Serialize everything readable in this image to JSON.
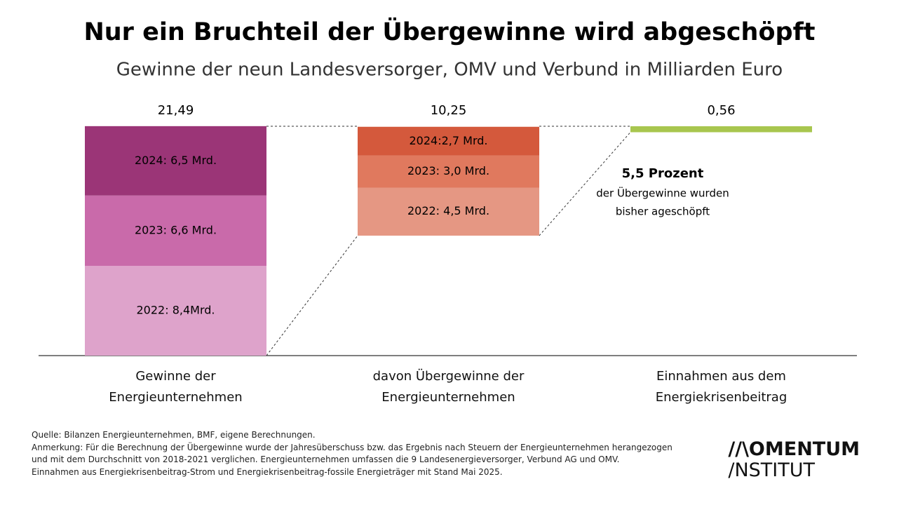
{
  "chart_data": {
    "type": "waterfall",
    "title": "Nur ein Bruchteil der Übergewinne wird abgeschöpft",
    "subtitle": "Gewinne der neun Landesversorger, OMV und Verbund in Milliarden Euro",
    "categories": [
      "Gewinne der Energieunternehmen",
      "davon Übergewinne der Energieunternehmen",
      "Einnahmen aus dem Energiekrisenbeitrag"
    ],
    "totals": [
      21.49,
      10.25,
      0.56
    ],
    "total_labels": [
      "21,49",
      "10,25",
      "0,56"
    ],
    "bars": [
      {
        "segments": [
          {
            "value": 8.4,
            "label": "2022: 8,4Mrd.",
            "color": "#dea3cb"
          },
          {
            "value": 6.6,
            "label": "2023: 6,6 Mrd.",
            "color": "#c96aaa"
          },
          {
            "value": 6.5,
            "label": "2024: 6,5 Mrd.",
            "color": "#9b3577"
          }
        ]
      },
      {
        "segments": [
          {
            "value": 4.5,
            "label": "2022: 4,5 Mrd.",
            "color": "#e59783"
          },
          {
            "value": 3.0,
            "label": "2023: 3,0 Mrd.",
            "color": "#e0795e"
          },
          {
            "value": 2.7,
            "label": "2024:2,7 Mrd.",
            "color": "#d4593c"
          }
        ]
      },
      {
        "color": "#a8c64f"
      }
    ],
    "annotation": [
      "5,5 Prozent",
      "der Übergewinne wurden",
      "bisher ageschöpft"
    ]
  },
  "footer": {
    "notes": [
      "Quelle: Bilanzen Energieunternehmen, BMF, eigene Berechnungen.",
      "Anmerkung: Für die Berechnung der Übergewinne wurde der Jahresüberschuss bzw. das Ergebnis nach Steuern der Energieunternehmen herangezogen",
      "und mit dem Durchschnitt von 2018-2021 verglichen. Energieunternehmen umfassen die 9 Landesenergieversorger, Verbund  AG und OMV.",
      "Einnahmen aus Energiekrisenbeitrag-Strom und Energiekrisenbeitrag-fossile Energieträger mit Stand Mai 2025."
    ],
    "logo": [
      "//\\OMENTUM",
      "/NSTITUT"
    ]
  }
}
